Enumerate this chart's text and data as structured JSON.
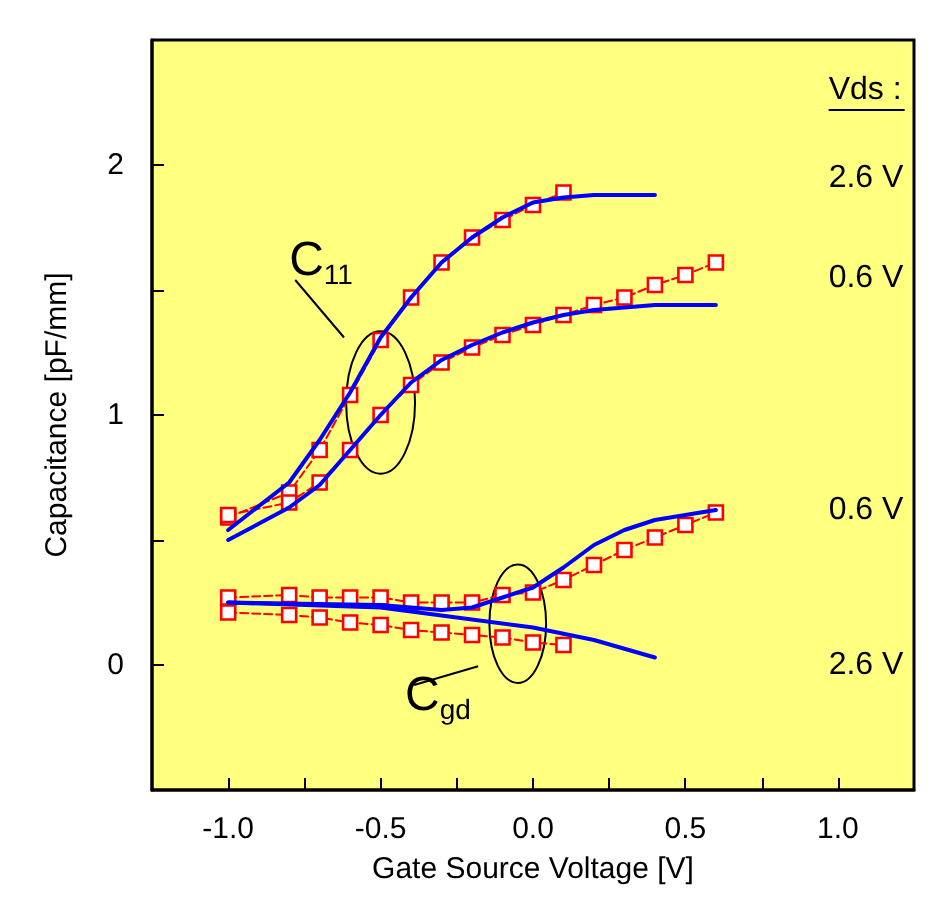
{
  "chart_data": {
    "type": "line",
    "xlabel": "Gate Source Voltage [V]",
    "ylabel": "Capacitance [pF/mm]",
    "xlim": [
      -1.25,
      1.25
    ],
    "ylim": [
      -0.5,
      2.5
    ],
    "xticks": [
      {
        "value": -1,
        "label": "-1.0"
      },
      {
        "value": -0.75,
        "label": null
      },
      {
        "value": -0.5,
        "label": "-0.5"
      },
      {
        "value": -0.25,
        "label": null
      },
      {
        "value": 0,
        "label": "0.0"
      },
      {
        "value": 0.25,
        "label": null
      },
      {
        "value": 0.5,
        "label": "0.5"
      },
      {
        "value": 0.75,
        "label": null
      },
      {
        "value": 1,
        "label": "1.0"
      }
    ],
    "yticks": [
      0,
      {
        "value": 0.5,
        "label": null
      },
      1,
      {
        "value": 1.5,
        "label": null
      },
      2
    ],
    "grid": false,
    "series": [
      {
        "color": "#ff0000",
        "marker": "square",
        "line_style": "dashed",
        "x": [
          -1,
          -0.8,
          -0.7,
          -0.6,
          -0.5,
          -0.4,
          -0.3,
          -0.2,
          -0.1,
          0,
          0.1
        ],
        "values": [
          0.59,
          0.69,
          0.86,
          1.08,
          1.3,
          1.47,
          1.61,
          1.71,
          1.78,
          1.84,
          1.89
        ]
      },
      {
        "color": "#ff0000",
        "marker": "square",
        "line_style": "dashed",
        "x": [
          -1,
          -0.8,
          -0.7,
          -0.6,
          -0.5,
          -0.4,
          -0.3,
          -0.2,
          -0.1,
          0,
          0.1,
          0.2,
          0.3,
          0.4,
          0.5,
          0.6
        ],
        "values": [
          0.6,
          0.65,
          0.73,
          0.86,
          1.0,
          1.12,
          1.21,
          1.27,
          1.32,
          1.36,
          1.4,
          1.44,
          1.47,
          1.52,
          1.56,
          1.61
        ]
      },
      {
        "color": "#ff0000",
        "marker": "square",
        "line_style": "dashed",
        "x": [
          -1,
          -0.8,
          -0.7,
          -0.6,
          -0.5,
          -0.4,
          -0.3,
          -0.2,
          -0.1,
          0,
          0.1,
          0.2,
          0.3,
          0.4,
          0.5,
          0.6
        ],
        "values": [
          0.27,
          0.28,
          0.27,
          0.27,
          0.27,
          0.25,
          0.25,
          0.25,
          0.28,
          0.29,
          0.34,
          0.4,
          0.46,
          0.51,
          0.56,
          0.61
        ]
      },
      {
        "color": "#ff0000",
        "marker": "square",
        "line_style": "dashed",
        "x": [
          -1,
          -0.8,
          -0.7,
          -0.6,
          -0.5,
          -0.4,
          -0.3,
          -0.2,
          -0.1,
          0,
          0.1
        ],
        "values": [
          0.21,
          0.2,
          0.19,
          0.17,
          0.16,
          0.14,
          0.13,
          0.12,
          0.11,
          0.09,
          0.08
        ]
      },
      {
        "color": "#0000ff",
        "marker": "none",
        "line_style": "solid",
        "x": [
          -1,
          -0.8,
          -0.7,
          -0.6,
          -0.5,
          -0.4,
          -0.3,
          -0.2,
          -0.1,
          0,
          0.1,
          0.2,
          0.4
        ],
        "values": [
          0.54,
          0.73,
          0.9,
          1.09,
          1.31,
          1.47,
          1.61,
          1.71,
          1.79,
          1.85,
          1.87,
          1.88,
          1.88
        ]
      },
      {
        "color": "#0000ff",
        "marker": "none",
        "line_style": "solid",
        "x": [
          -1,
          -0.8,
          -0.7,
          -0.6,
          -0.5,
          -0.4,
          -0.3,
          -0.2,
          -0.1,
          0,
          0.1,
          0.2,
          0.3,
          0.4,
          0.6
        ],
        "values": [
          0.5,
          0.63,
          0.72,
          0.86,
          1.0,
          1.13,
          1.22,
          1.28,
          1.33,
          1.37,
          1.4,
          1.42,
          1.43,
          1.44,
          1.44
        ]
      },
      {
        "color": "#0000ff",
        "marker": "none",
        "line_style": "solid",
        "x": [
          -1,
          -0.5,
          -0.3,
          -0.2,
          -0.1,
          0,
          0.1,
          0.2,
          0.3,
          0.4,
          0.6
        ],
        "values": [
          0.25,
          0.24,
          0.22,
          0.23,
          0.27,
          0.31,
          0.39,
          0.48,
          0.54,
          0.58,
          0.62
        ]
      },
      {
        "color": "#0000ff",
        "marker": "none",
        "line_style": "solid",
        "x": [
          -1,
          -0.5,
          0,
          0.2,
          0.4
        ],
        "values": [
          0.25,
          0.23,
          0.15,
          0.1,
          0.03
        ]
      }
    ],
    "annotations": [
      "Vds :",
      "2.6 V",
      "0.6 V",
      "0.6 V",
      "2.6 V",
      "C$_{11}$",
      "C$_{gd}$"
    ]
  }
}
